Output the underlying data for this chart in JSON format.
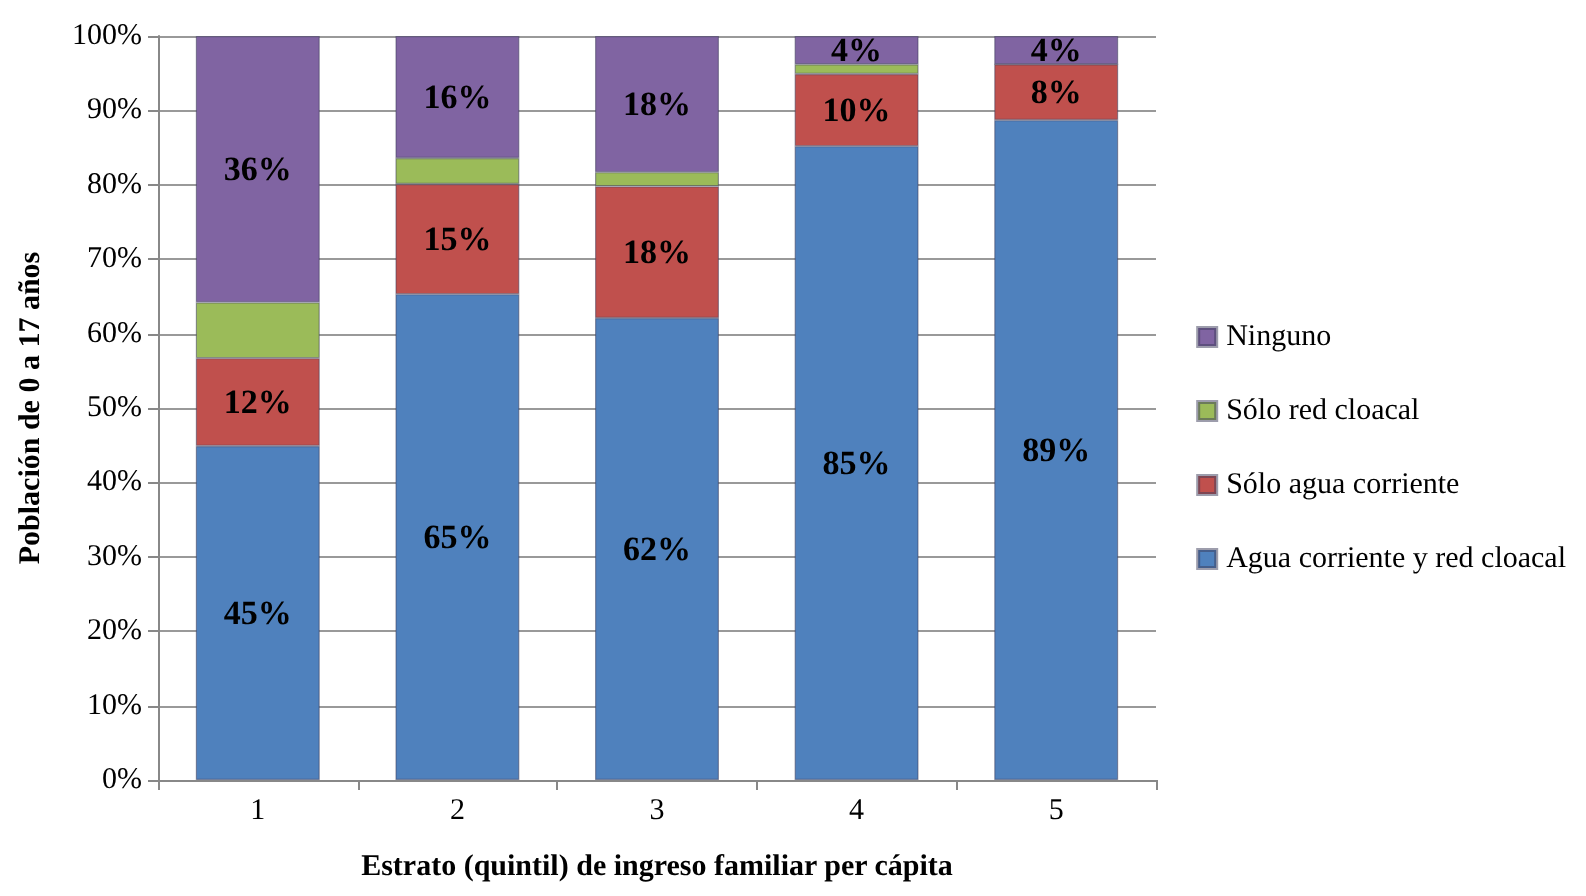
{
  "chart_data": {
    "type": "bar",
    "stacked": true,
    "xlabel": "Estrato (quintil) de ingreso familiar per cápita",
    "ylabel": "Población de 0 a 17 años",
    "categories": [
      "1",
      "2",
      "3",
      "4",
      "5"
    ],
    "series": [
      {
        "name": "Agua corriente y red cloacal",
        "color": "#4f81bd",
        "values": [
          44.9,
          65.3,
          62.1,
          85.2,
          88.7
        ],
        "value_labels": [
          "45%",
          "65%",
          "62%",
          "85%",
          "89%"
        ]
      },
      {
        "name": "Sólo agua corriente",
        "color": "#c0504d",
        "values": [
          11.8,
          14.8,
          17.7,
          9.7,
          7.5
        ],
        "value_labels": [
          "12%",
          "15%",
          "18%",
          "10%",
          "8%"
        ]
      },
      {
        "name": "Sólo red cloacal",
        "color": "#9bbb59",
        "values": [
          7.5,
          3.5,
          1.9,
          1.3,
          0
        ],
        "value_labels": [
          null,
          null,
          null,
          null,
          null
        ]
      },
      {
        "name": "Ninguno",
        "color": "#8064a2",
        "values": [
          35.8,
          16.4,
          18.3,
          3.8,
          3.8
        ],
        "value_labels": [
          "36%",
          "16%",
          "18%",
          "4%",
          "4%"
        ]
      }
    ],
    "ylim": [
      0,
      100
    ],
    "yticks": [
      {
        "value": 0,
        "label": "0%"
      },
      {
        "value": 10,
        "label": "10%"
      },
      {
        "value": 20,
        "label": "20%"
      },
      {
        "value": 30,
        "label": "30%"
      },
      {
        "value": 40,
        "label": "40%"
      },
      {
        "value": 50,
        "label": "50%"
      },
      {
        "value": 60,
        "label": "60%"
      },
      {
        "value": 70,
        "label": "70%"
      },
      {
        "value": 80,
        "label": "80%"
      },
      {
        "value": 90,
        "label": "90%"
      },
      {
        "value": 100,
        "label": "100%"
      }
    ],
    "grid": "y",
    "legend": "right"
  }
}
